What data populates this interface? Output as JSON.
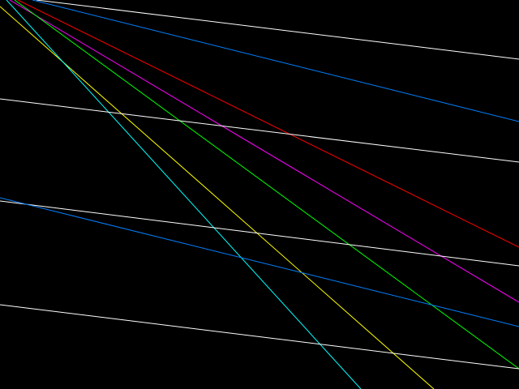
{
  "background": "#000000",
  "lines": [
    {
      "color": "#ffffff"
    },
    {
      "color": "#0080ff"
    },
    {
      "color": "#ff0000"
    },
    {
      "color": "#ff00ff"
    },
    {
      "color": "#00ff00"
    },
    {
      "color": "#ffff00"
    },
    {
      "color": "#00ffff"
    },
    {
      "color": "#ffffff"
    },
    {
      "color": "#ffffff"
    },
    {
      "color": "#0080ff"
    },
    {
      "color": "#ffffff"
    }
  ]
}
